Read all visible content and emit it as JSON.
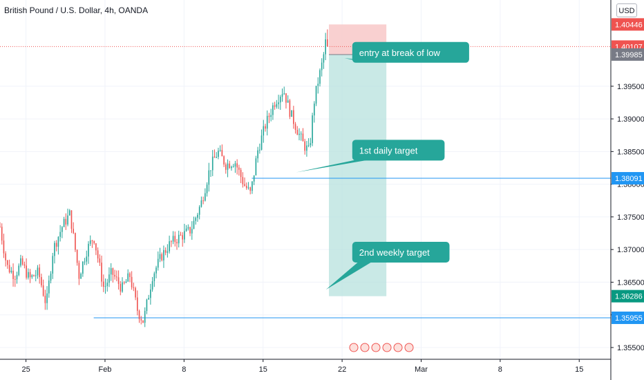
{
  "title": "British Pound / U.S. Dollar, 4h, OANDA",
  "currency_button": "USD",
  "colors": {
    "up": "#26a69a",
    "down": "#ef5350",
    "level_line": "#2196f3",
    "callout_fill": "#26a69a",
    "target_zone": "#b2dfdb",
    "stop_zone": "#f8c8c8",
    "current_price": "#ef5350",
    "entry_price_tag": "#787b86",
    "target_price_tag": "#089981",
    "level_tag": "#2196f3"
  },
  "chart_data": {
    "type": "candlestick",
    "symbol": "GBPUSD",
    "timeframe": "4h",
    "y_ticks": [
      1.355,
      1.36,
      1.365,
      1.37,
      1.375,
      1.38,
      1.385,
      1.39,
      1.395
    ],
    "y_tick_labels": [
      "1.35500",
      "1.36000",
      "1.36500",
      "1.37000",
      "1.37500",
      "1.38000",
      "1.38500",
      "1.39000",
      "1.39500"
    ],
    "x_tick_labels": [
      "25",
      "Feb",
      "8",
      "15",
      "22",
      "Mar",
      "8",
      "15"
    ],
    "x_tick_days": [
      25,
      32,
      39,
      46,
      53,
      60,
      67,
      74
    ],
    "x_range_days": [
      22.7,
      76.8
    ],
    "y_range": [
      1.3532,
      1.4082
    ],
    "price_tags": [
      {
        "value": 1.40446,
        "label": "1.40446",
        "kind": "stop"
      },
      {
        "value": 1.40107,
        "label": "1.40107",
        "kind": "current"
      },
      {
        "value": 1.39985,
        "label": "1.39985",
        "kind": "entry"
      },
      {
        "value": 1.38091,
        "label": "1.38091",
        "kind": "level"
      },
      {
        "value": 1.36286,
        "label": "1.36286",
        "kind": "target"
      },
      {
        "value": 1.35955,
        "label": "1.35955",
        "kind": "level"
      }
    ],
    "horizontal_levels": [
      {
        "value": 1.38091,
        "start_day": 45.0
      },
      {
        "value": 1.35955,
        "start_day": 31.0
      }
    ],
    "position": {
      "type": "short",
      "entry": 1.39985,
      "stop": 1.40446,
      "target": 1.36286,
      "start_day": 51.83,
      "end_day": 56.92
    },
    "annotations": [
      {
        "text": "entry at break of low",
        "box_day": 53.9,
        "box_price": 1.40177,
        "pointer_day": 53.2,
        "pointer_price": 1.39931
      },
      {
        "text": "1st daily target",
        "box_day": 53.9,
        "box_price": 1.3868,
        "pointer_day": 48.92,
        "pointer_price": 1.38181
      },
      {
        "text": "2nd weekly target",
        "box_day": 53.9,
        "box_price": 1.37118,
        "pointer_day": 51.56,
        "pointer_price": 1.36386
      }
    ],
    "candle_anchors": [
      [
        22.7,
        1.3735
      ],
      [
        23.3,
        1.3675
      ],
      [
        24.0,
        1.366
      ],
      [
        24.6,
        1.368
      ],
      [
        25.3,
        1.3655
      ],
      [
        26.1,
        1.3665
      ],
      [
        26.8,
        1.3615
      ],
      [
        27.4,
        1.37
      ],
      [
        28.2,
        1.3735
      ],
      [
        28.9,
        1.3755
      ],
      [
        29.7,
        1.366
      ],
      [
        30.4,
        1.37
      ],
      [
        31.0,
        1.372
      ],
      [
        31.9,
        1.364
      ],
      [
        32.6,
        1.3665
      ],
      [
        33.5,
        1.364
      ],
      [
        34.2,
        1.366
      ],
      [
        34.9,
        1.3605
      ],
      [
        35.4,
        1.359
      ],
      [
        36.2,
        1.366
      ],
      [
        37.0,
        1.369
      ],
      [
        37.8,
        1.371
      ],
      [
        38.7,
        1.372
      ],
      [
        39.6,
        1.373
      ],
      [
        40.5,
        1.377
      ],
      [
        41.3,
        1.3825
      ],
      [
        42.0,
        1.385
      ],
      [
        42.7,
        1.383
      ],
      [
        43.5,
        1.3835
      ],
      [
        44.3,
        1.38
      ],
      [
        44.9,
        1.3785
      ],
      [
        45.5,
        1.385
      ],
      [
        46.2,
        1.389
      ],
      [
        47.0,
        1.3925
      ],
      [
        47.8,
        1.3945
      ],
      [
        48.4,
        1.391
      ],
      [
        49.1,
        1.388
      ],
      [
        49.6,
        1.386
      ],
      [
        50.1,
        1.385
      ],
      [
        50.5,
        1.3925
      ],
      [
        50.9,
        1.396
      ],
      [
        51.3,
        1.399
      ],
      [
        51.6,
        1.4025
      ],
      [
        51.83,
        1.40107
      ]
    ]
  }
}
